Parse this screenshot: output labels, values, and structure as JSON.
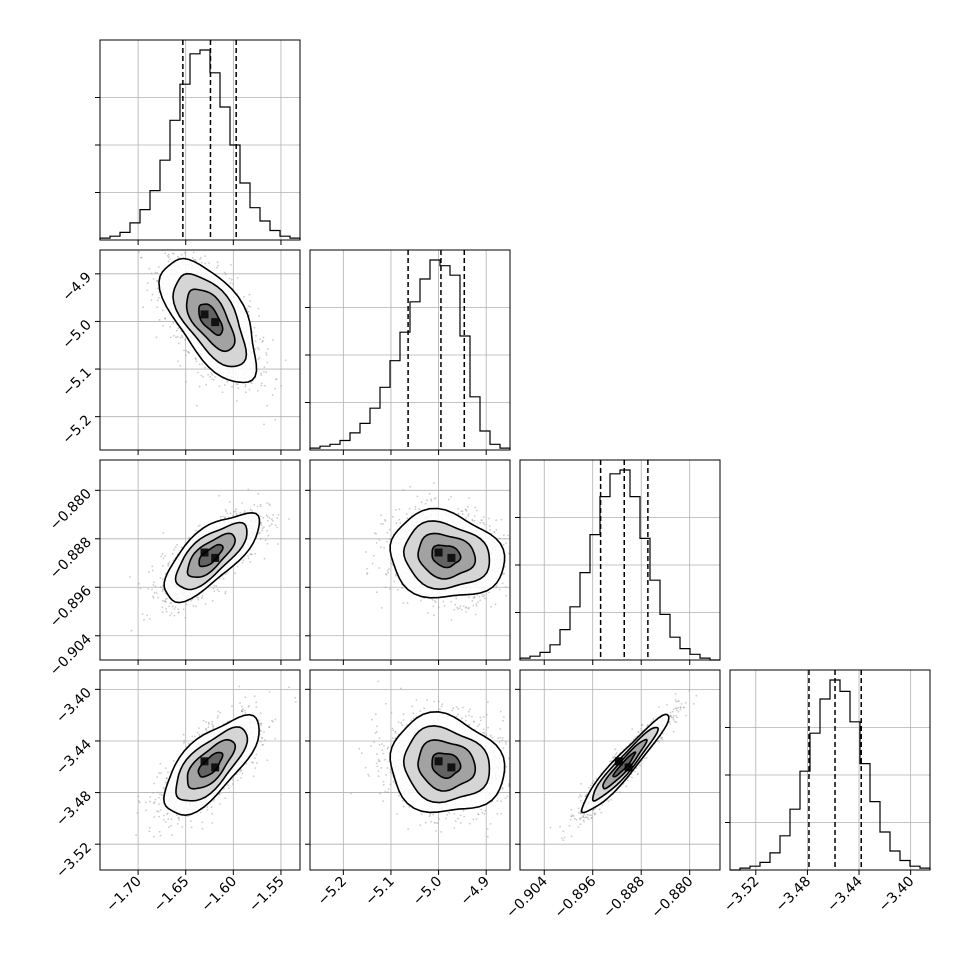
{
  "chart_data": {
    "type": "corner",
    "description_level": "posterior corner plot of 4 parameters",
    "n_params": 4,
    "parameters": [
      {
        "label": "",
        "range": [
          -1.74,
          -1.53
        ],
        "quantiles": [
          -1.653,
          -1.624,
          -1.597
        ],
        "ticks": [
          -1.7,
          -1.65,
          -1.6,
          -1.55
        ],
        "tick_labels": [
          "−1.70",
          "−1.65",
          "−1.60",
          "−1.55"
        ],
        "hist": [
          0.01,
          0.02,
          0.04,
          0.09,
          0.16,
          0.26,
          0.42,
          0.63,
          0.82,
          0.98,
          1.0,
          0.88,
          0.7,
          0.5,
          0.3,
          0.17,
          0.1,
          0.05,
          0.02,
          0.01
        ]
      },
      {
        "label": "",
        "range": [
          -5.27,
          -4.85
        ],
        "quantiles": [
          -5.064,
          -4.995,
          -4.946
        ],
        "ticks": [
          -5.2,
          -5.1,
          -5.0,
          -4.9
        ],
        "tick_labels": [
          "−5.2",
          "−5.1",
          "−5.0",
          "−4.9"
        ],
        "hist": [
          0.01,
          0.02,
          0.03,
          0.05,
          0.09,
          0.14,
          0.22,
          0.33,
          0.47,
          0.62,
          0.78,
          0.9,
          1.0,
          0.97,
          0.92,
          0.6,
          0.28,
          0.1,
          0.03,
          0.01
        ]
      },
      {
        "label": "",
        "range": [
          -0.908,
          -0.875
        ],
        "quantiles": [
          -0.8947,
          -0.8908,
          -0.8869
        ],
        "ticks": [
          -0.904,
          -0.896,
          -0.888,
          -0.88
        ],
        "tick_labels": [
          "−0.904",
          "−0.896",
          "−0.888",
          "−0.880"
        ],
        "hist": [
          0.01,
          0.02,
          0.04,
          0.08,
          0.16,
          0.28,
          0.46,
          0.66,
          0.86,
          0.98,
          1.0,
          0.86,
          0.64,
          0.42,
          0.24,
          0.12,
          0.06,
          0.03,
          0.01,
          0.0
        ]
      },
      {
        "label": "",
        "range": [
          -3.54,
          -3.385
        ],
        "quantiles": [
          -3.4788,
          -3.4586,
          -3.4383
        ],
        "ticks": [
          -3.52,
          -3.48,
          -3.44,
          -3.4
        ],
        "tick_labels": [
          "−3.52",
          "−3.48",
          "−3.44",
          "−3.40"
        ],
        "hist": [
          0.0,
          0.01,
          0.02,
          0.04,
          0.09,
          0.18,
          0.32,
          0.52,
          0.72,
          0.9,
          1.0,
          0.94,
          0.78,
          0.56,
          0.36,
          0.2,
          0.1,
          0.05,
          0.02,
          0.01
        ]
      }
    ],
    "pairs": [
      {
        "x": 0,
        "y": 1,
        "mean": [
          -1.624,
          -4.995
        ],
        "sd": [
          0.025,
          0.065
        ],
        "corr": -0.62
      },
      {
        "x": 0,
        "y": 2,
        "mean": [
          -1.624,
          -0.8908
        ],
        "sd": [
          0.025,
          0.0036
        ],
        "corr": 0.72
      },
      {
        "x": 1,
        "y": 2,
        "mean": [
          -4.985,
          -0.8908
        ],
        "sd": [
          0.06,
          0.0036
        ],
        "corr": -0.12
      },
      {
        "x": 0,
        "y": 3,
        "mean": [
          -1.624,
          -3.4586
        ],
        "sd": [
          0.025,
          0.019
        ],
        "corr": 0.7
      },
      {
        "x": 1,
        "y": 3,
        "mean": [
          -4.985,
          -3.4586
        ],
        "sd": [
          0.06,
          0.019
        ],
        "corr": -0.1
      },
      {
        "x": 2,
        "y": 3,
        "mean": [
          -0.8908,
          -3.4586
        ],
        "sd": [
          0.0036,
          0.019
        ],
        "corr": 0.95
      }
    ],
    "contour_levels_sigma": [
      0.5,
      1.0,
      1.5,
      2.0
    ],
    "grid": true,
    "colors": {
      "line": "#000000",
      "scatter": "#9a9a9a",
      "grid": "#b0b0b0"
    }
  }
}
